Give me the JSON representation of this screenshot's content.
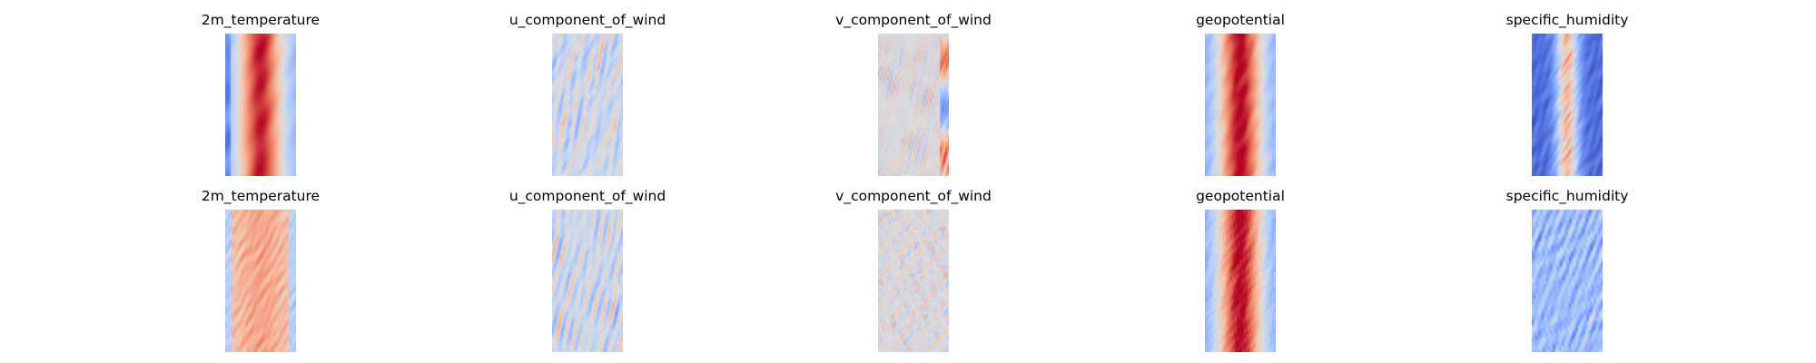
{
  "figure": {
    "rows": [
      {
        "panels": [
          {
            "title": "2m_temperature",
            "field": "2m_temperature"
          },
          {
            "title": "u_component_of_wind",
            "field": "u_component_of_wind"
          },
          {
            "title": "v_component_of_wind",
            "field": "v_component_of_wind"
          },
          {
            "title": "geopotential",
            "field": "geopotential"
          },
          {
            "title": "specific_humidity",
            "field": "specific_humidity"
          }
        ]
      },
      {
        "panels": [
          {
            "title": "2m_temperature",
            "field": "2m_temperature"
          },
          {
            "title": "u_component_of_wind",
            "field": "u_component_of_wind"
          },
          {
            "title": "v_component_of_wind",
            "field": "v_component_of_wind"
          },
          {
            "title": "geopotential",
            "field": "geopotential"
          },
          {
            "title": "specific_humidity",
            "field": "specific_humidity"
          }
        ]
      }
    ]
  },
  "chart_data": [
    {
      "type": "heatmap",
      "title": "2m_temperature",
      "colormap": "coolwarm",
      "axes": "off"
    },
    {
      "type": "heatmap",
      "title": "u_component_of_wind",
      "colormap": "coolwarm",
      "axes": "off"
    },
    {
      "type": "heatmap",
      "title": "v_component_of_wind",
      "colormap": "coolwarm",
      "axes": "off"
    },
    {
      "type": "heatmap",
      "title": "geopotential",
      "colormap": "coolwarm",
      "axes": "off"
    },
    {
      "type": "heatmap",
      "title": "specific_humidity",
      "colormap": "coolwarm",
      "axes": "off"
    },
    {
      "type": "heatmap",
      "title": "2m_temperature",
      "colormap": "coolwarm",
      "axes": "off"
    },
    {
      "type": "heatmap",
      "title": "u_component_of_wind",
      "colormap": "coolwarm",
      "axes": "off"
    },
    {
      "type": "heatmap",
      "title": "v_component_of_wind",
      "colormap": "coolwarm",
      "axes": "off"
    },
    {
      "type": "heatmap",
      "title": "geopotential",
      "colormap": "coolwarm",
      "axes": "off"
    },
    {
      "type": "heatmap",
      "title": "specific_humidity",
      "colormap": "coolwarm",
      "axes": "off"
    }
  ],
  "colors": {
    "coolwarm_low": "#3b4cc0",
    "coolwarm_mid": "#dddddd",
    "coolwarm_high": "#b40426"
  }
}
